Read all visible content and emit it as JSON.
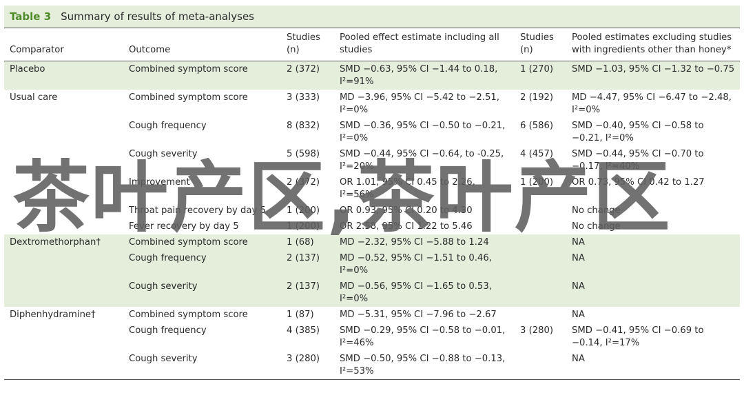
{
  "title": {
    "label": "Table 3",
    "text": "Summary of results of meta-analyses"
  },
  "table": {
    "header": [
      "Comparator",
      "Outcome",
      "Studies (n)",
      "Pooled effect estimate including all studies",
      "Studies (n)",
      "Pooled estimates excluding studies with ingredients other than honey*"
    ],
    "groups": [
      {
        "comparator": "Placebo",
        "rows": [
          [
            "Combined symptom score",
            "2 (372)",
            "SMD −0.63, 95% CI −1.44 to 0.18, I²=91%",
            "1 (270)",
            "SMD −1.03, 95% CI −1.32 to −0.75"
          ]
        ]
      },
      {
        "comparator": "Usual care",
        "rows": [
          [
            "Combined symptom score",
            "3 (333)",
            "MD −3.96, 95% CI −5.42 to −2.51, I²=0%",
            "2 (192)",
            "MD −4.47, 95% CI −6.47 to −2.48, I²=0%"
          ],
          [
            "Cough frequency",
            "8 (832)",
            "SMD −0.36, 95% CI −0.50 to −0.21, I²=0%",
            "6 (586)",
            "SMD −0.40, 95% CI −0.58 to −0.21, I²=0%"
          ],
          [
            "Cough severity",
            "5 (598)",
            "SMD −0.44, 95% CI −0.64, to -0.25, I²=20%",
            "4 (457)",
            "SMD −0.44, 95% CI −0.70 to −0.17, I²=40%"
          ],
          [
            "Improvement",
            "2 (372)",
            "OR 1.01, 95% CI 0.45 to 2.26, I²=56%",
            "1 (200)",
            "OR 0.73, 95% CI 0.42 to 1.27"
          ],
          [
            "Throat pain recovery by day 5",
            "1 (200)",
            "OR 0.93, 95% CI 0.20 to 4.30",
            "",
            "No change"
          ],
          [
            "Fever recovery by day 5",
            "1 (200)",
            "OR 2.58, 95% CI 1.22 to 5.46",
            "",
            "No change"
          ]
        ]
      },
      {
        "comparator": "Dextromethorphan†",
        "rows": [
          [
            "Combined symptom score",
            "1 (68)",
            "MD −2.32, 95% CI −5.88 to 1.24",
            "",
            "NA"
          ],
          [
            "Cough frequency",
            "2 (137)",
            "MD −0.52, 95% CI −1.51 to 0.46, I²=0%",
            "",
            "NA"
          ],
          [
            "Cough severity",
            "2 (137)",
            "MD −0.56, 95% CI −1.65 to 0.53, I²=0%",
            "",
            "NA"
          ]
        ]
      },
      {
        "comparator": "Diphenhydramine†",
        "rows": [
          [
            "Combined symptom score",
            "1 (87)",
            "MD −5.31, 95% CI −7.96 to −2.67",
            "",
            "NA"
          ],
          [
            "Cough frequency",
            "4 (385)",
            "SMD −0.29, 95% CI −0.58 to −0.01, I²=46%",
            "3 (280)",
            "SMD −0.41, 95% CI −0.69 to −0.14, I²=17%"
          ],
          [
            "Cough severity",
            "3 (280)",
            "SMD −0.50, 95% CI −0.88 to −0.13, I²=53%",
            "",
            "NA"
          ]
        ]
      }
    ]
  },
  "watermark": "茶叶产区,茶叶产区"
}
